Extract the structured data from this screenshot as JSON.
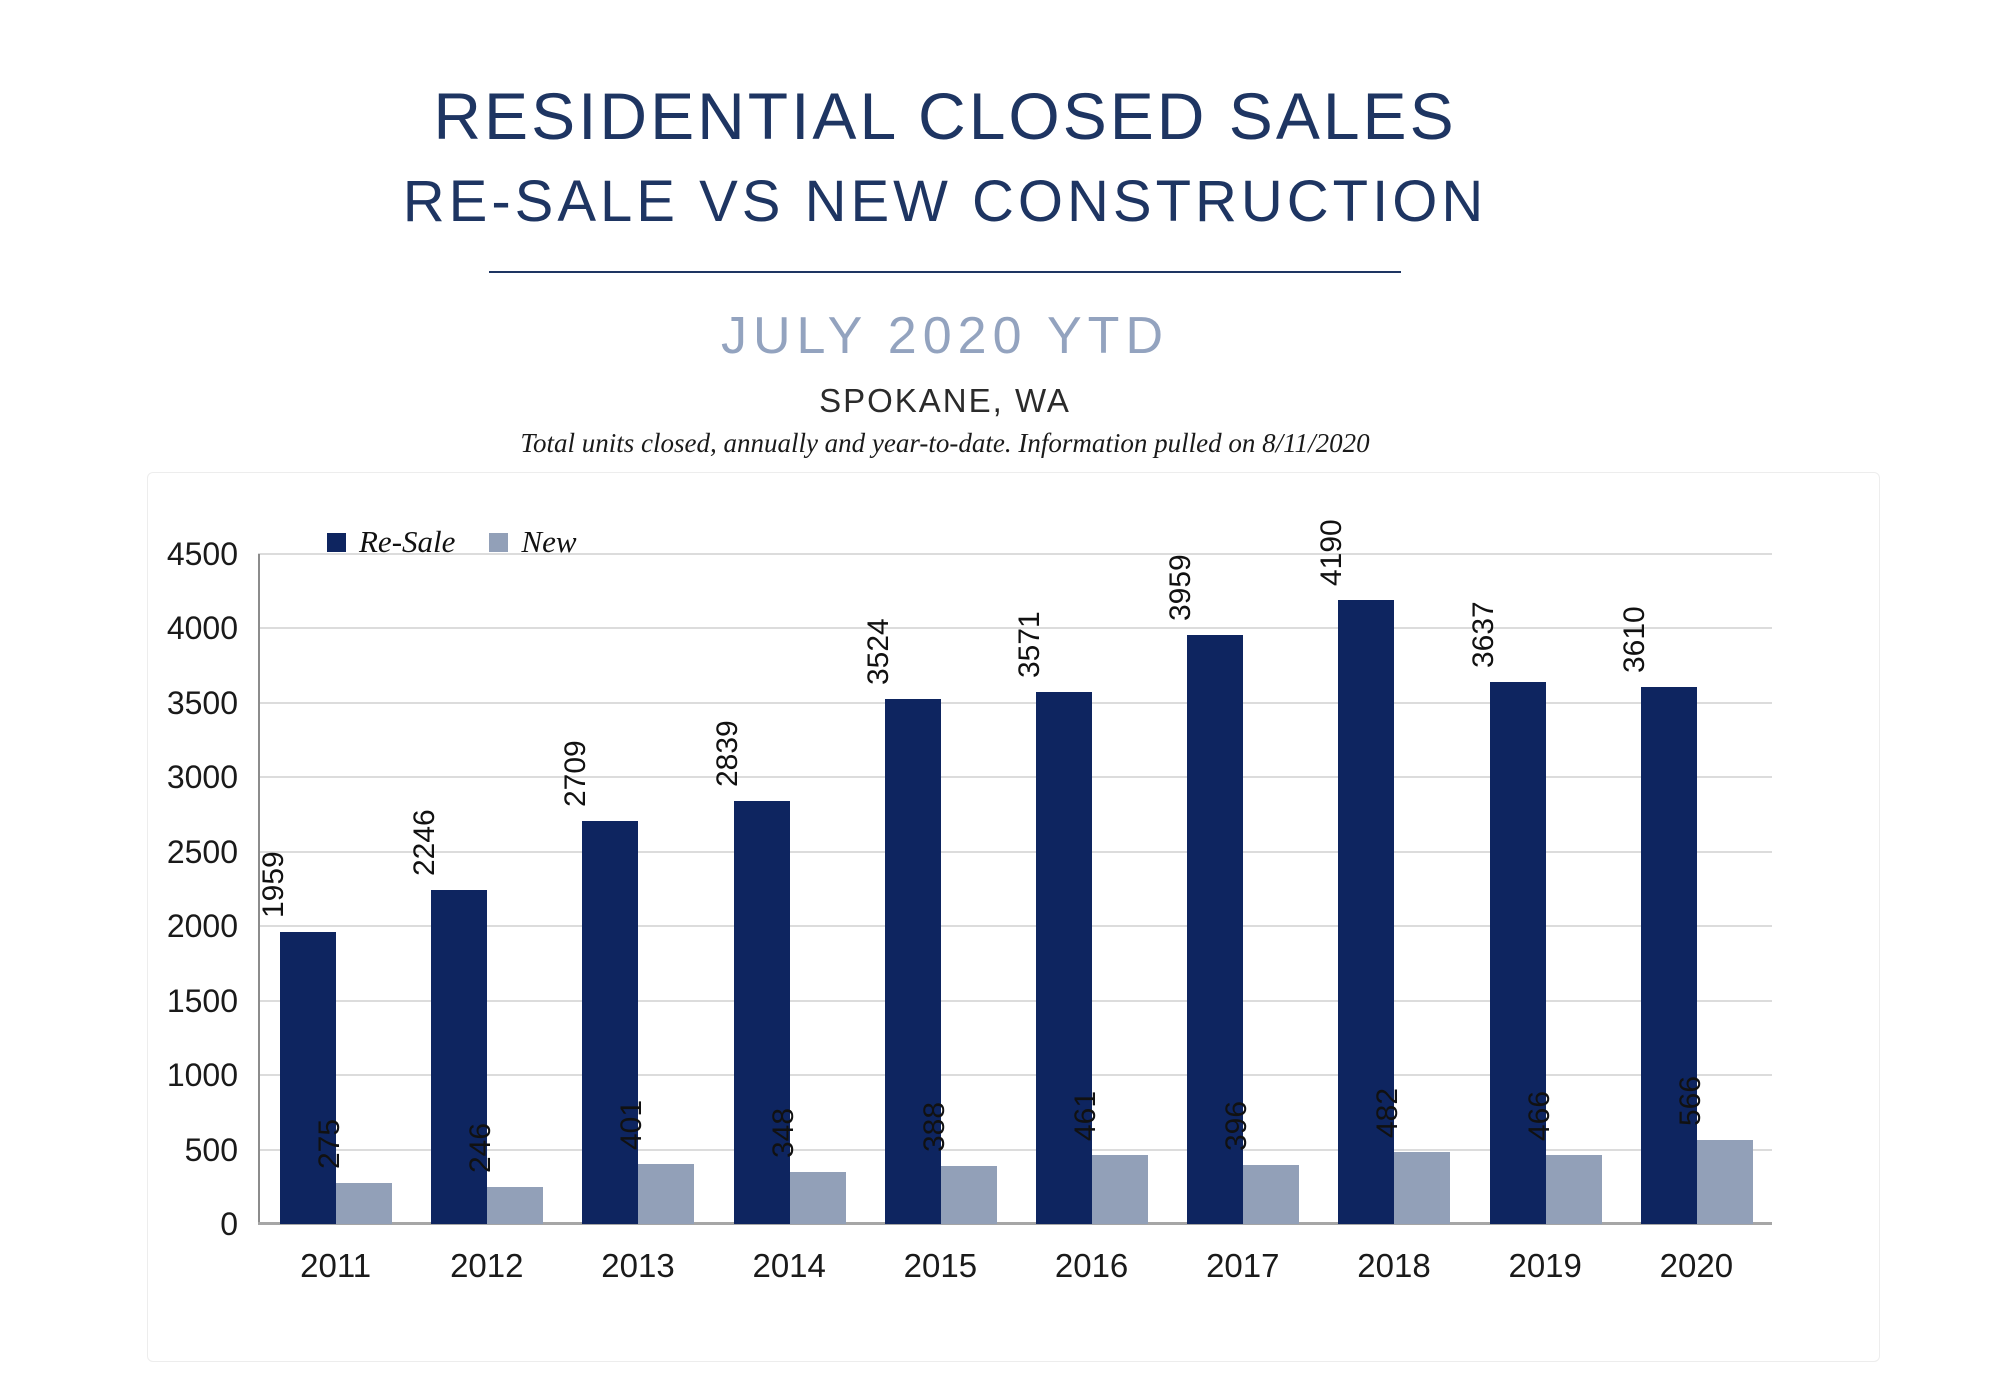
{
  "header": {
    "title": "RESIDENTIAL CLOSED SALES",
    "subtitle": "RE-SALE VS NEW CONSTRUCTION",
    "period": "JULY 2020 YTD",
    "location": "SPOKANE, WA",
    "note": "Total units closed, annually and year-to-date.  Information pulled on 8/11/2020"
  },
  "colors": {
    "title_navy": "#1E3562",
    "period_blue": "#93A3BF",
    "resale_bar": "#0E2560",
    "new_bar": "#92A0B8",
    "gridline": "#DCDCDC",
    "axis": "#A6A6A6"
  },
  "chart_data": {
    "type": "bar",
    "title": "Residential Closed Sales, Re-Sale vs New Construction, July 2020 YTD, Spokane, WA",
    "categories": [
      "2011",
      "2012",
      "2013",
      "2014",
      "2015",
      "2016",
      "2017",
      "2018",
      "2019",
      "2020"
    ],
    "series": [
      {
        "name": "Re-Sale",
        "color": "#0E2560",
        "values": [
          1959,
          2246,
          2709,
          2839,
          3524,
          3571,
          3959,
          4190,
          3637,
          3610
        ]
      },
      {
        "name": "New",
        "color": "#92A0B8",
        "values": [
          275,
          246,
          401,
          348,
          388,
          461,
          396,
          482,
          466,
          566
        ]
      }
    ],
    "xlabel": "",
    "ylabel": "",
    "ylim": [
      0,
      4500
    ],
    "yticks": [
      0,
      500,
      1000,
      1500,
      2000,
      2500,
      3000,
      3500,
      4000,
      4500
    ],
    "grid": "horizontal",
    "legend_position": "top-left",
    "bar_label_rotation": 90
  }
}
